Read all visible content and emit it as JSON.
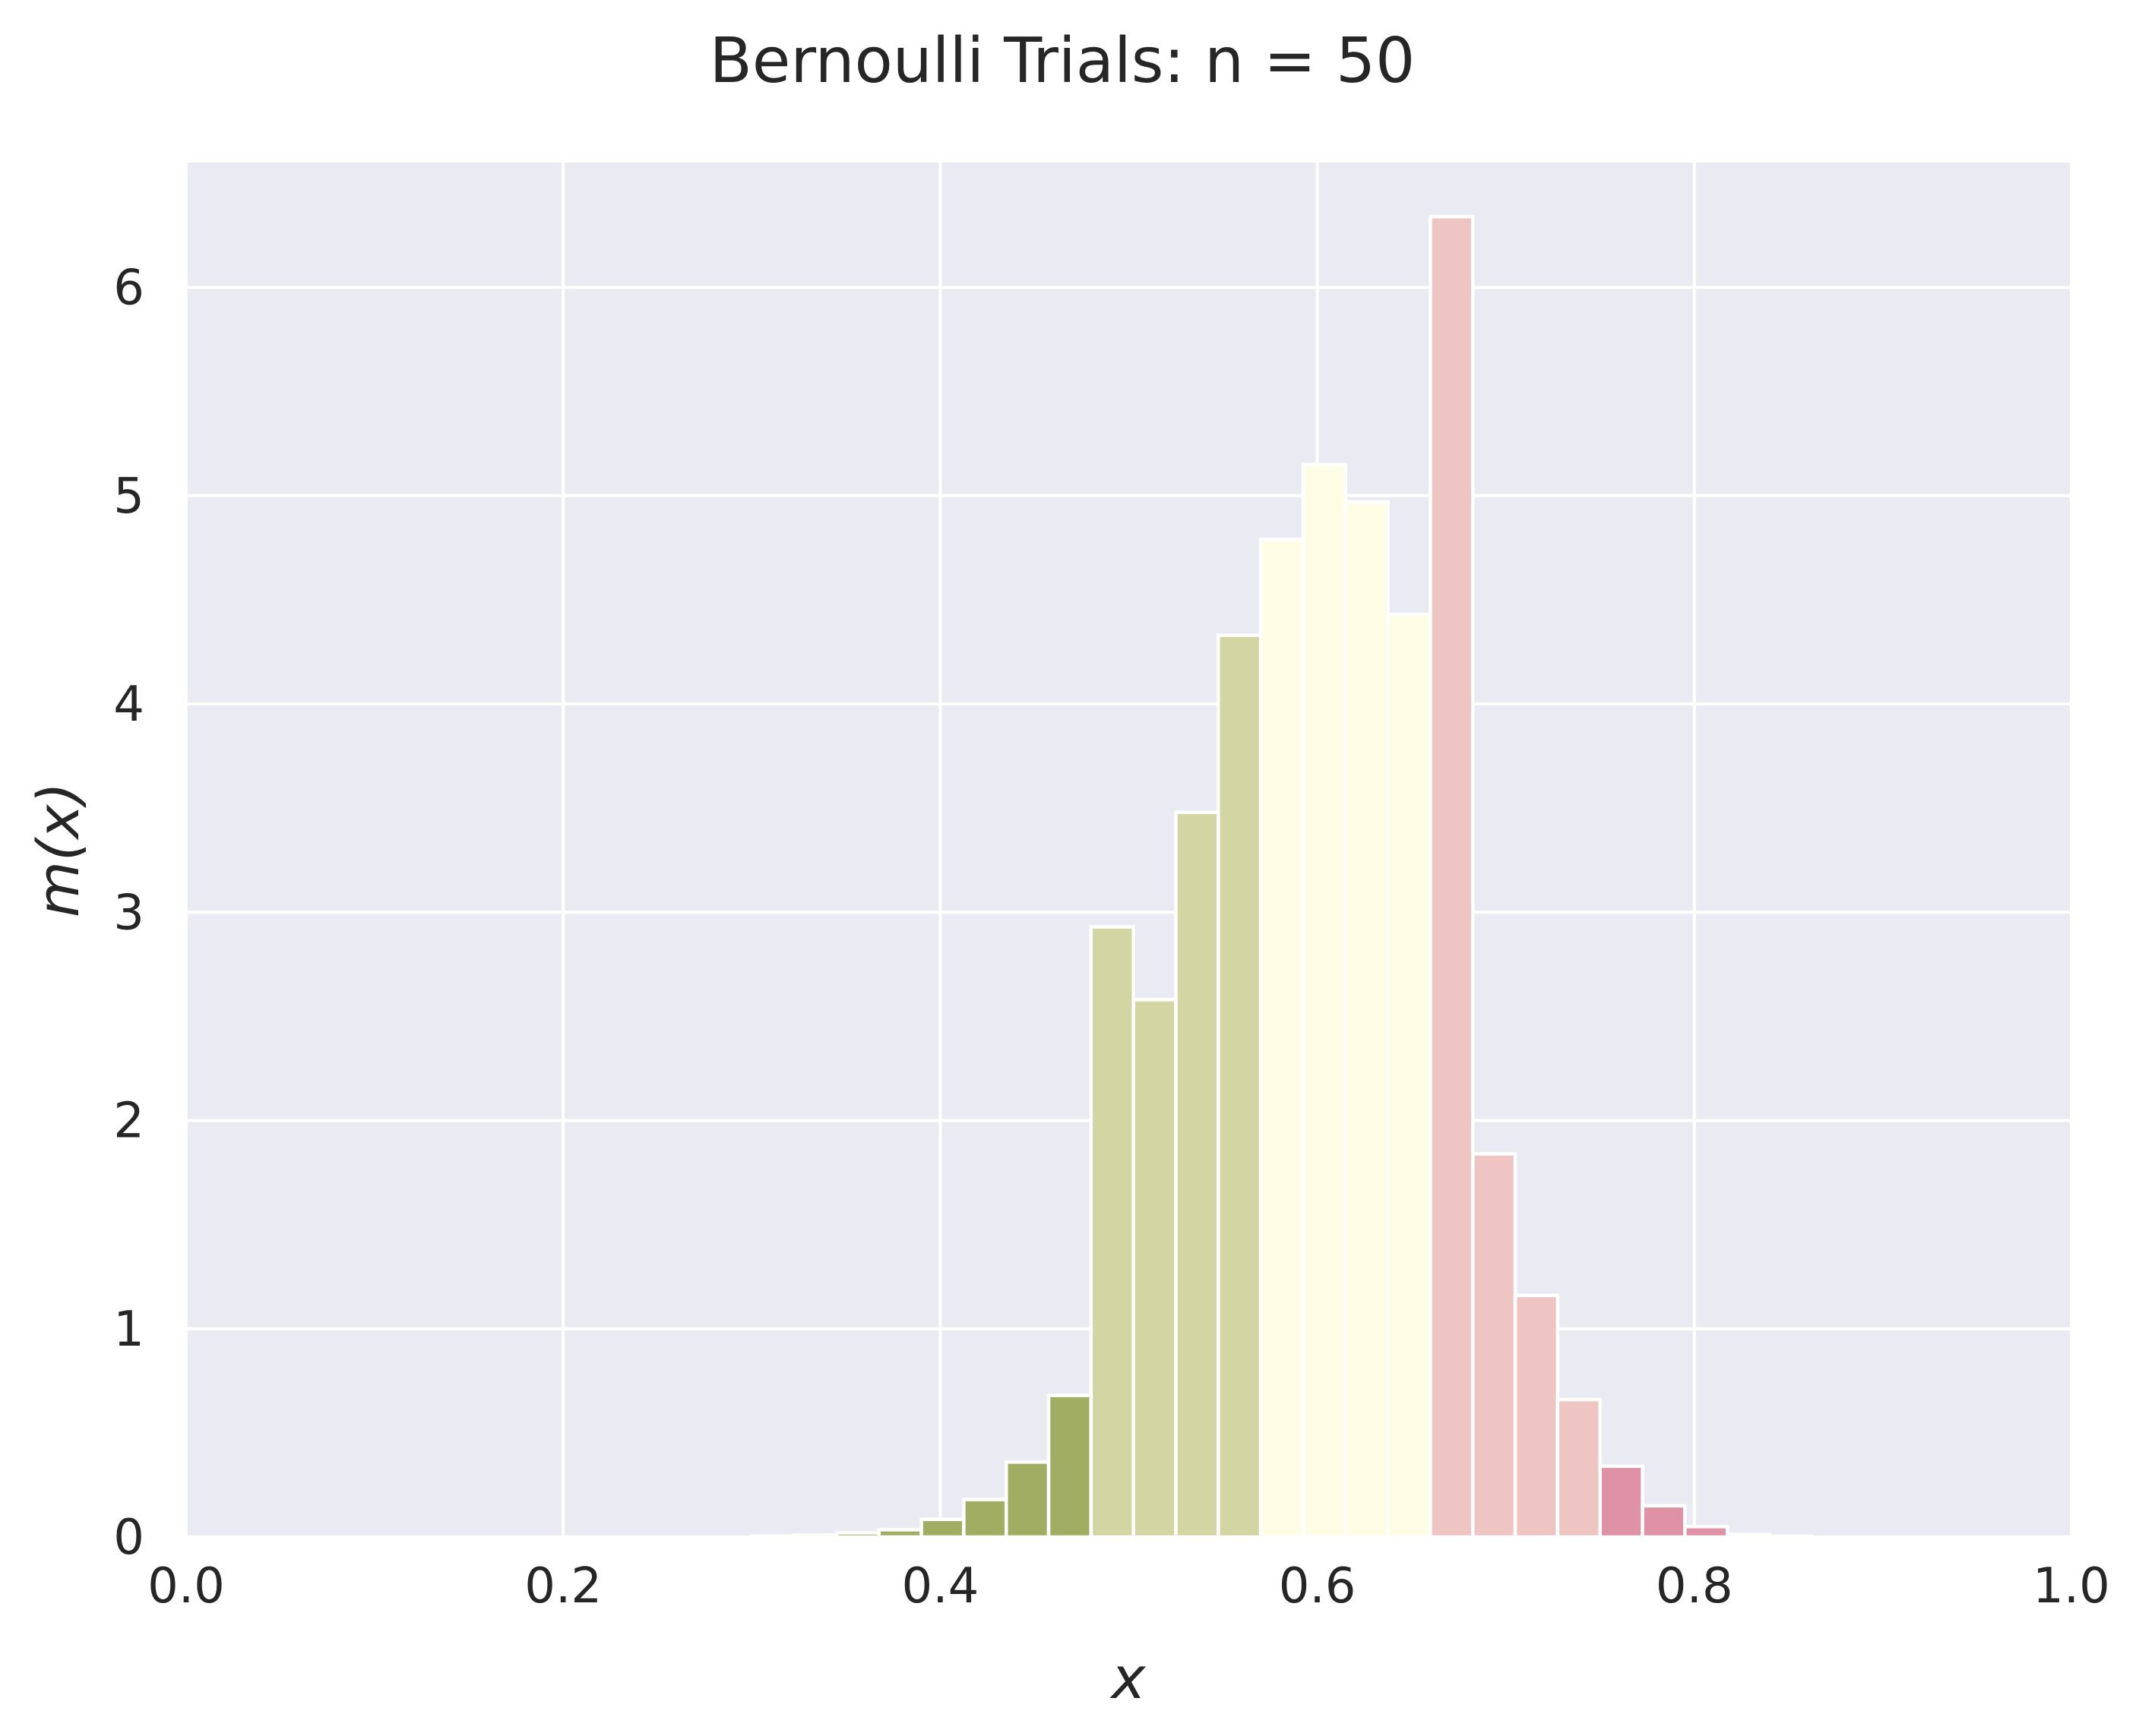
{
  "chart_data": {
    "type": "bar",
    "title": "Bernoulli Trials: n = 50",
    "xlabel": "x",
    "ylabel": "m(x)",
    "xlim": [
      0.0,
      1.0
    ],
    "ylim": [
      0,
      6.6
    ],
    "grid": true,
    "x_ticks": [
      "0.0",
      "0.2",
      "0.4",
      "0.6",
      "0.8",
      "1.0"
    ],
    "y_ticks": [
      "0",
      "1",
      "2",
      "3",
      "4",
      "5",
      "6"
    ],
    "bin_width": 0.0225,
    "bins": [
      {
        "x_start": 0.3,
        "value": 0.005,
        "color": "#a2ad64"
      },
      {
        "x_start": 0.3225,
        "value": 0.01,
        "color": "#a2ad64"
      },
      {
        "x_start": 0.345,
        "value": 0.02,
        "color": "#a2ad64"
      },
      {
        "x_start": 0.3675,
        "value": 0.035,
        "color": "#a2ad64"
      },
      {
        "x_start": 0.39,
        "value": 0.085,
        "color": "#a2ad64"
      },
      {
        "x_start": 0.4125,
        "value": 0.18,
        "color": "#a2ad64"
      },
      {
        "x_start": 0.435,
        "value": 0.36,
        "color": "#a2ad64"
      },
      {
        "x_start": 0.4575,
        "value": 0.68,
        "color": "#a2ad64"
      },
      {
        "x_start": 0.48,
        "value": 2.93,
        "color": "#d1d6a2"
      },
      {
        "x_start": 0.5025,
        "value": 2.58,
        "color": "#d1d6a2"
      },
      {
        "x_start": 0.525,
        "value": 3.48,
        "color": "#d1d6a2"
      },
      {
        "x_start": 0.5475,
        "value": 4.33,
        "color": "#d1d6a2"
      },
      {
        "x_start": 0.57,
        "value": 4.79,
        "color": "#fdfce5"
      },
      {
        "x_start": 0.5925,
        "value": 5.15,
        "color": "#fdfce5"
      },
      {
        "x_start": 0.615,
        "value": 4.97,
        "color": "#fdfce5"
      },
      {
        "x_start": 0.6375,
        "value": 4.43,
        "color": "#fdfce5"
      },
      {
        "x_start": 0.66,
        "value": 6.34,
        "color": "#efc5c3"
      },
      {
        "x_start": 0.6825,
        "value": 1.84,
        "color": "#efc5c3"
      },
      {
        "x_start": 0.705,
        "value": 1.16,
        "color": "#efc5c3"
      },
      {
        "x_start": 0.7275,
        "value": 0.66,
        "color": "#efc5c3"
      },
      {
        "x_start": 0.75,
        "value": 0.34,
        "color": "#df92a5"
      },
      {
        "x_start": 0.7725,
        "value": 0.15,
        "color": "#df92a5"
      },
      {
        "x_start": 0.795,
        "value": 0.05,
        "color": "#df92a5"
      },
      {
        "x_start": 0.8175,
        "value": 0.012,
        "color": "#efc5c3"
      },
      {
        "x_start": 0.84,
        "value": 0.004,
        "color": "#efc5c3"
      }
    ],
    "colors": {
      "plot_background": "#eaeaf2",
      "grid": "#ffffff",
      "text": "#262626"
    }
  }
}
